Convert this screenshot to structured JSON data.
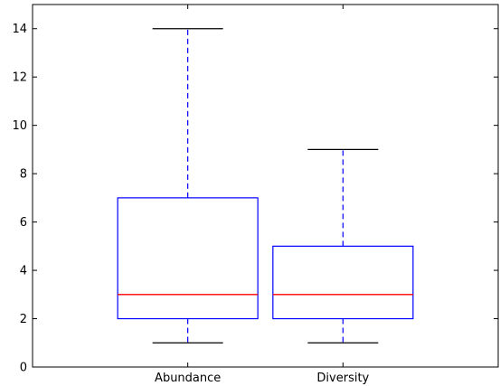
{
  "chart_data": {
    "type": "box",
    "title": "",
    "xlabel": "",
    "ylabel": "",
    "categories": [
      "Abundance",
      "Diversity"
    ],
    "ylim": [
      0,
      15
    ],
    "yticks": [
      0,
      2,
      4,
      6,
      8,
      10,
      12,
      14
    ],
    "ytick_labels": [
      "0",
      "2",
      "4",
      "6",
      "8",
      "10",
      "12",
      "14"
    ],
    "grid": false,
    "boxes": [
      {
        "category": "Abundance",
        "whisker_low": 1,
        "q1": 2,
        "median": 3,
        "q3": 7,
        "whisker_high": 14
      },
      {
        "category": "Diversity",
        "whisker_low": 1,
        "q1": 2,
        "median": 3,
        "q3": 5,
        "whisker_high": 9
      }
    ],
    "colors": {
      "box": "#0000ff",
      "whisker": "#0000ff",
      "cap": "#000000",
      "median": "#ff0000",
      "axis": "#000000"
    }
  }
}
